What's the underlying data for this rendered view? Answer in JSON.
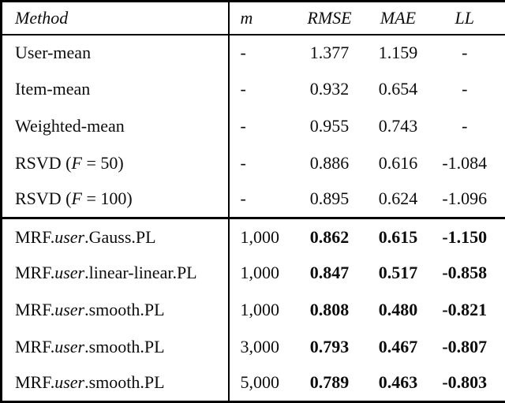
{
  "colors": {
    "background": "#ffffff",
    "text": "#0d0d0d",
    "border": "#000000"
  },
  "table": {
    "columns": [
      {
        "key": "method",
        "label": "Method"
      },
      {
        "key": "m",
        "label": "m"
      },
      {
        "key": "rmse",
        "label": "RMSE"
      },
      {
        "key": "mae",
        "label": "MAE"
      },
      {
        "key": "ll",
        "label": "LL"
      }
    ],
    "sections": [
      {
        "name": "baseline-methods",
        "rows": [
          {
            "method_parts": [
              {
                "text": "User-mean",
                "italic": false
              }
            ],
            "m": "-",
            "rmse": "1.377",
            "mae": "1.159",
            "ll": "-",
            "bold_metrics": false
          },
          {
            "method_parts": [
              {
                "text": "Item-mean",
                "italic": false
              }
            ],
            "m": "-",
            "rmse": "0.932",
            "mae": "0.654",
            "ll": "-",
            "bold_metrics": false
          },
          {
            "method_parts": [
              {
                "text": "Weighted-mean",
                "italic": false
              }
            ],
            "m": "-",
            "rmse": "0.955",
            "mae": "0.743",
            "ll": "-",
            "bold_metrics": false
          },
          {
            "method_parts": [
              {
                "text": "RSVD (",
                "italic": false
              },
              {
                "text": "F",
                "italic": true
              },
              {
                "text": " = 50)",
                "italic": false
              }
            ],
            "m": "-",
            "rmse": "0.886",
            "mae": "0.616",
            "ll": "-1.084",
            "bold_metrics": false
          },
          {
            "method_parts": [
              {
                "text": "RSVD (",
                "italic": false
              },
              {
                "text": "F",
                "italic": true
              },
              {
                "text": " = 100)",
                "italic": false
              }
            ],
            "m": "-",
            "rmse": "0.895",
            "mae": "0.624",
            "ll": "-1.096",
            "bold_metrics": false
          }
        ]
      },
      {
        "name": "mrf-methods",
        "rows": [
          {
            "method_parts": [
              {
                "text": "MRF.",
                "italic": false
              },
              {
                "text": "user",
                "italic": true
              },
              {
                "text": ".Gauss.PL",
                "italic": false
              }
            ],
            "m": "1,000",
            "rmse": "0.862",
            "mae": "0.615",
            "ll": "-1.150",
            "bold_metrics": true
          },
          {
            "method_parts": [
              {
                "text": "MRF.",
                "italic": false
              },
              {
                "text": "user",
                "italic": true
              },
              {
                "text": ".linear-linear.PL",
                "italic": false
              }
            ],
            "m": "1,000",
            "rmse": "0.847",
            "mae": "0.517",
            "ll": "-0.858",
            "bold_metrics": true
          },
          {
            "method_parts": [
              {
                "text": "MRF.",
                "italic": false
              },
              {
                "text": "user",
                "italic": true
              },
              {
                "text": ".smooth.PL",
                "italic": false
              }
            ],
            "m": "1,000",
            "rmse": "0.808",
            "mae": "0.480",
            "ll": "-0.821",
            "bold_metrics": true
          },
          {
            "method_parts": [
              {
                "text": "MRF.",
                "italic": false
              },
              {
                "text": "user",
                "italic": true
              },
              {
                "text": ".smooth.PL",
                "italic": false
              }
            ],
            "m": "3,000",
            "rmse": "0.793",
            "mae": "0.467",
            "ll": "-0.807",
            "bold_metrics": true
          },
          {
            "method_parts": [
              {
                "text": "MRF.",
                "italic": false
              },
              {
                "text": "user",
                "italic": true
              },
              {
                "text": ".smooth.PL",
                "italic": false
              }
            ],
            "m": "5,000",
            "rmse": "0.789",
            "mae": "0.463",
            "ll": "-0.803",
            "bold_metrics": true
          }
        ]
      }
    ]
  }
}
